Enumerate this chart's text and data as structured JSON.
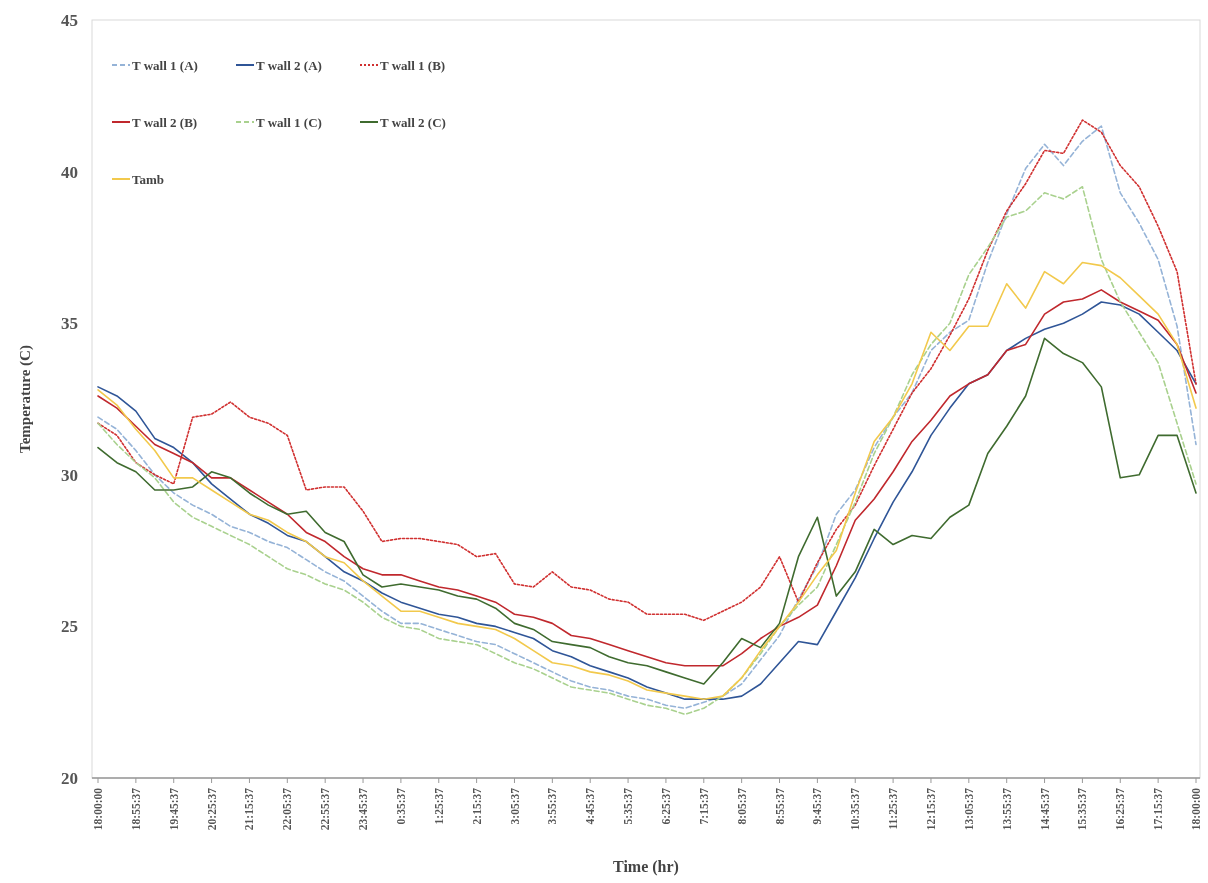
{
  "chart_data": {
    "type": "line",
    "xlabel": "Time (hr)",
    "ylabel": "Temperature (C)",
    "categories": [
      "18:00:00",
      null,
      "18:55:37",
      null,
      "19:45:37",
      null,
      "20:25:37",
      null,
      "21:15:37",
      null,
      "22:05:37",
      null,
      "22:55:37",
      null,
      "23:45:37",
      null,
      "0:35:37",
      null,
      "1:25:37",
      null,
      "2:15:37",
      null,
      "3:05:37",
      null,
      "3:55:37",
      null,
      "4:45:37",
      null,
      "5:35:37",
      null,
      "6:25:37",
      null,
      "7:15:37",
      null,
      "8:05:37",
      null,
      "8:55:37",
      null,
      "9:45:37",
      null,
      "10:35:37",
      null,
      "11:25:37",
      null,
      "12:15:37",
      null,
      "13:05:37",
      null,
      "13:55:37",
      null,
      "14:45:37",
      null,
      "15:35:37",
      null,
      "16:25:37",
      null,
      "17:15:37",
      null,
      "18:00:00"
    ],
    "ylim": [
      20,
      45
    ],
    "yticks": [
      20,
      25,
      30,
      35,
      40,
      45
    ],
    "grid": false,
    "legend": "top left",
    "series": [
      {
        "name": "T wall 1 (A)",
        "color": "#95b3d7",
        "line_style": "dashed",
        "values": [
          31.9,
          31.5,
          30.8,
          30.0,
          29.4,
          29.0,
          28.7,
          28.3,
          28.1,
          27.8,
          27.6,
          27.2,
          26.8,
          26.5,
          26.0,
          25.5,
          25.1,
          25.1,
          24.9,
          24.7,
          24.5,
          24.4,
          24.1,
          23.8,
          23.5,
          23.2,
          23.0,
          22.9,
          22.7,
          22.6,
          22.4,
          22.3,
          22.5,
          22.7,
          23.1,
          23.9,
          24.7,
          25.9,
          27.0,
          28.7,
          29.5,
          30.9,
          31.9,
          32.7,
          34.1,
          34.7,
          35.1,
          37.0,
          38.6,
          40.1,
          40.9,
          40.2,
          41.0,
          41.5,
          39.3,
          38.3,
          37.1,
          34.9,
          31.0
        ]
      },
      {
        "name": "T wall 2 (A)",
        "color": "#2f5597",
        "line_style": "solid",
        "values": [
          32.9,
          32.6,
          32.1,
          31.2,
          30.9,
          30.4,
          29.7,
          29.2,
          28.7,
          28.4,
          28.0,
          27.8,
          27.3,
          26.8,
          26.5,
          26.1,
          25.8,
          25.6,
          25.4,
          25.3,
          25.1,
          25.0,
          24.8,
          24.6,
          24.2,
          24.0,
          23.7,
          23.5,
          23.3,
          23.0,
          22.8,
          22.6,
          22.6,
          22.6,
          22.7,
          23.1,
          23.8,
          24.5,
          24.4,
          25.5,
          26.6,
          27.9,
          29.1,
          30.1,
          31.3,
          32.2,
          33.0,
          33.3,
          34.1,
          34.5,
          34.8,
          35.0,
          35.3,
          35.7,
          35.6,
          35.3,
          34.7,
          34.1,
          33.0
        ]
      },
      {
        "name": "T wall 1 (B)",
        "color": "#d03030",
        "line_style": "dotted",
        "values": [
          31.7,
          31.3,
          30.4,
          30.0,
          29.7,
          31.9,
          32.0,
          32.4,
          31.9,
          31.7,
          31.3,
          29.5,
          29.6,
          29.6,
          28.8,
          27.8,
          27.9,
          27.9,
          27.8,
          27.7,
          27.3,
          27.4,
          26.4,
          26.3,
          26.8,
          26.3,
          26.2,
          25.9,
          25.8,
          25.4,
          25.4,
          25.4,
          25.2,
          25.5,
          25.8,
          26.3,
          27.3,
          25.8,
          27.1,
          28.2,
          29.0,
          30.3,
          31.5,
          32.7,
          33.5,
          34.6,
          35.8,
          37.4,
          38.7,
          39.6,
          40.7,
          40.6,
          41.7,
          41.3,
          40.2,
          39.5,
          38.2,
          36.7,
          33.0
        ]
      },
      {
        "name": "T wall 2 (B)",
        "color": "#c0282d",
        "line_style": "solid",
        "values": [
          32.6,
          32.2,
          31.6,
          31.0,
          30.7,
          30.4,
          29.9,
          29.9,
          29.5,
          29.1,
          28.7,
          28.1,
          27.8,
          27.3,
          26.9,
          26.7,
          26.7,
          26.5,
          26.3,
          26.2,
          26.0,
          25.8,
          25.4,
          25.3,
          25.1,
          24.7,
          24.6,
          24.4,
          24.2,
          24.0,
          23.8,
          23.7,
          23.7,
          23.7,
          24.1,
          24.6,
          25.0,
          25.3,
          25.7,
          27.0,
          28.5,
          29.2,
          30.1,
          31.1,
          31.8,
          32.6,
          33.0,
          33.3,
          34.1,
          34.3,
          35.3,
          35.7,
          35.8,
          36.1,
          35.7,
          35.4,
          35.1,
          34.3,
          32.7
        ]
      },
      {
        "name": "T wall 1 (C)",
        "color": "#a9d18e",
        "line_style": "dashed",
        "values": [
          31.7,
          31.0,
          30.4,
          29.9,
          29.1,
          28.6,
          28.3,
          28.0,
          27.7,
          27.3,
          26.9,
          26.7,
          26.4,
          26.2,
          25.8,
          25.3,
          25.0,
          24.9,
          24.6,
          24.5,
          24.4,
          24.1,
          23.8,
          23.6,
          23.3,
          23.0,
          22.9,
          22.8,
          22.6,
          22.4,
          22.3,
          22.1,
          22.3,
          22.7,
          23.3,
          24.1,
          25.0,
          25.7,
          26.3,
          27.7,
          29.1,
          30.7,
          31.9,
          33.3,
          34.3,
          35.0,
          36.6,
          37.5,
          38.5,
          38.7,
          39.3,
          39.1,
          39.5,
          37.1,
          35.7,
          34.7,
          33.7,
          31.7,
          29.7
        ]
      },
      {
        "name": "T wall 2 (C)",
        "color": "#3f6b2f",
        "line_style": "solid",
        "values": [
          30.9,
          30.4,
          30.1,
          29.5,
          29.5,
          29.6,
          30.1,
          29.9,
          29.4,
          29.0,
          28.7,
          28.8,
          28.1,
          27.8,
          26.7,
          26.3,
          26.4,
          26.3,
          26.2,
          26.0,
          25.9,
          25.6,
          25.1,
          24.9,
          24.5,
          24.4,
          24.3,
          24.0,
          23.8,
          23.7,
          23.5,
          23.3,
          23.1,
          23.8,
          24.6,
          24.3,
          25.1,
          27.3,
          28.6,
          26.0,
          26.8,
          28.2,
          27.7,
          28.0,
          27.9,
          28.6,
          29.0,
          30.7,
          31.6,
          32.6,
          34.5,
          34.0,
          33.7,
          32.9,
          29.9,
          30.0,
          31.3,
          31.3,
          29.4
        ]
      },
      {
        "name": "Tamb",
        "color": "#f2c94c",
        "line_style": "solid",
        "values": [
          32.8,
          32.3,
          31.5,
          30.8,
          29.9,
          29.9,
          29.5,
          29.1,
          28.7,
          28.5,
          28.1,
          27.8,
          27.3,
          27.1,
          26.5,
          26.0,
          25.5,
          25.5,
          25.3,
          25.1,
          25.0,
          24.9,
          24.6,
          24.2,
          23.8,
          23.7,
          23.5,
          23.4,
          23.2,
          22.9,
          22.8,
          22.7,
          22.6,
          22.7,
          23.3,
          24.2,
          25.0,
          25.8,
          26.7,
          27.5,
          29.4,
          31.1,
          31.9,
          33.0,
          34.7,
          34.1,
          34.9,
          34.9,
          36.3,
          35.5,
          36.7,
          36.3,
          37.0,
          36.9,
          36.5,
          35.9,
          35.3,
          34.3,
          32.2
        ]
      }
    ]
  }
}
